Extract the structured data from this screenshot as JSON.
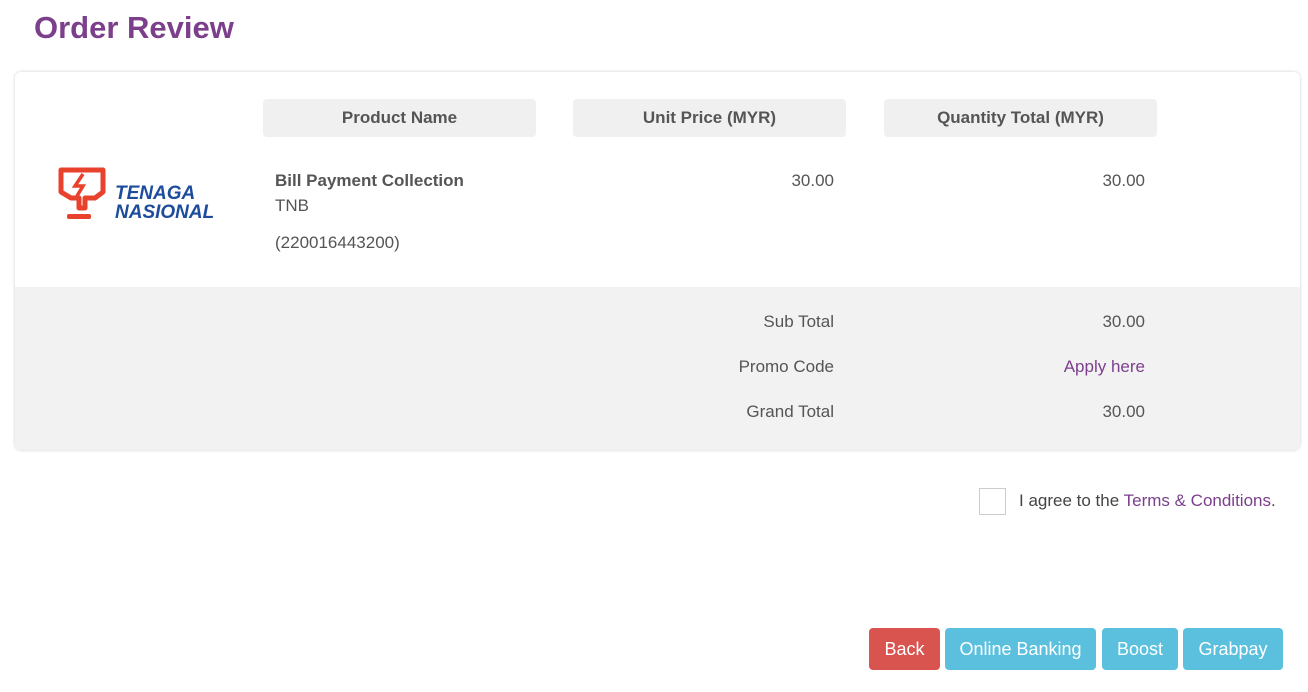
{
  "page": {
    "title": "Order Review"
  },
  "table": {
    "headers": [
      "Product Name",
      "Unit Price (MYR)",
      "Quantity Total (MYR)"
    ],
    "logo": {
      "text_line1": "TENAGA",
      "text_line2": "NASIONAL"
    },
    "item": {
      "name": "Bill Payment Collection",
      "biller": "TNB",
      "account": "(220016443200)",
      "unit_price": "30.00",
      "quantity_total": "30.00"
    }
  },
  "summary": {
    "sub_total_label": "Sub Total",
    "sub_total": "30.00",
    "promo_label": "Promo Code",
    "promo_link": "Apply here",
    "grand_total_label": "Grand Total",
    "grand_total": "30.00"
  },
  "agreement": {
    "prefix": "I agree to the ",
    "link": "Terms & Conditions",
    "suffix": ".",
    "checked": false
  },
  "buttons": {
    "back": "Back",
    "online_banking": "Online Banking",
    "boost": "Boost",
    "grabpay": "Grabpay"
  },
  "colors": {
    "accent": "#7b3f8c",
    "danger": "#d9534f",
    "info": "#5bc0de",
    "logo_red": "#e8412c",
    "logo_blue": "#1d4c9c"
  }
}
